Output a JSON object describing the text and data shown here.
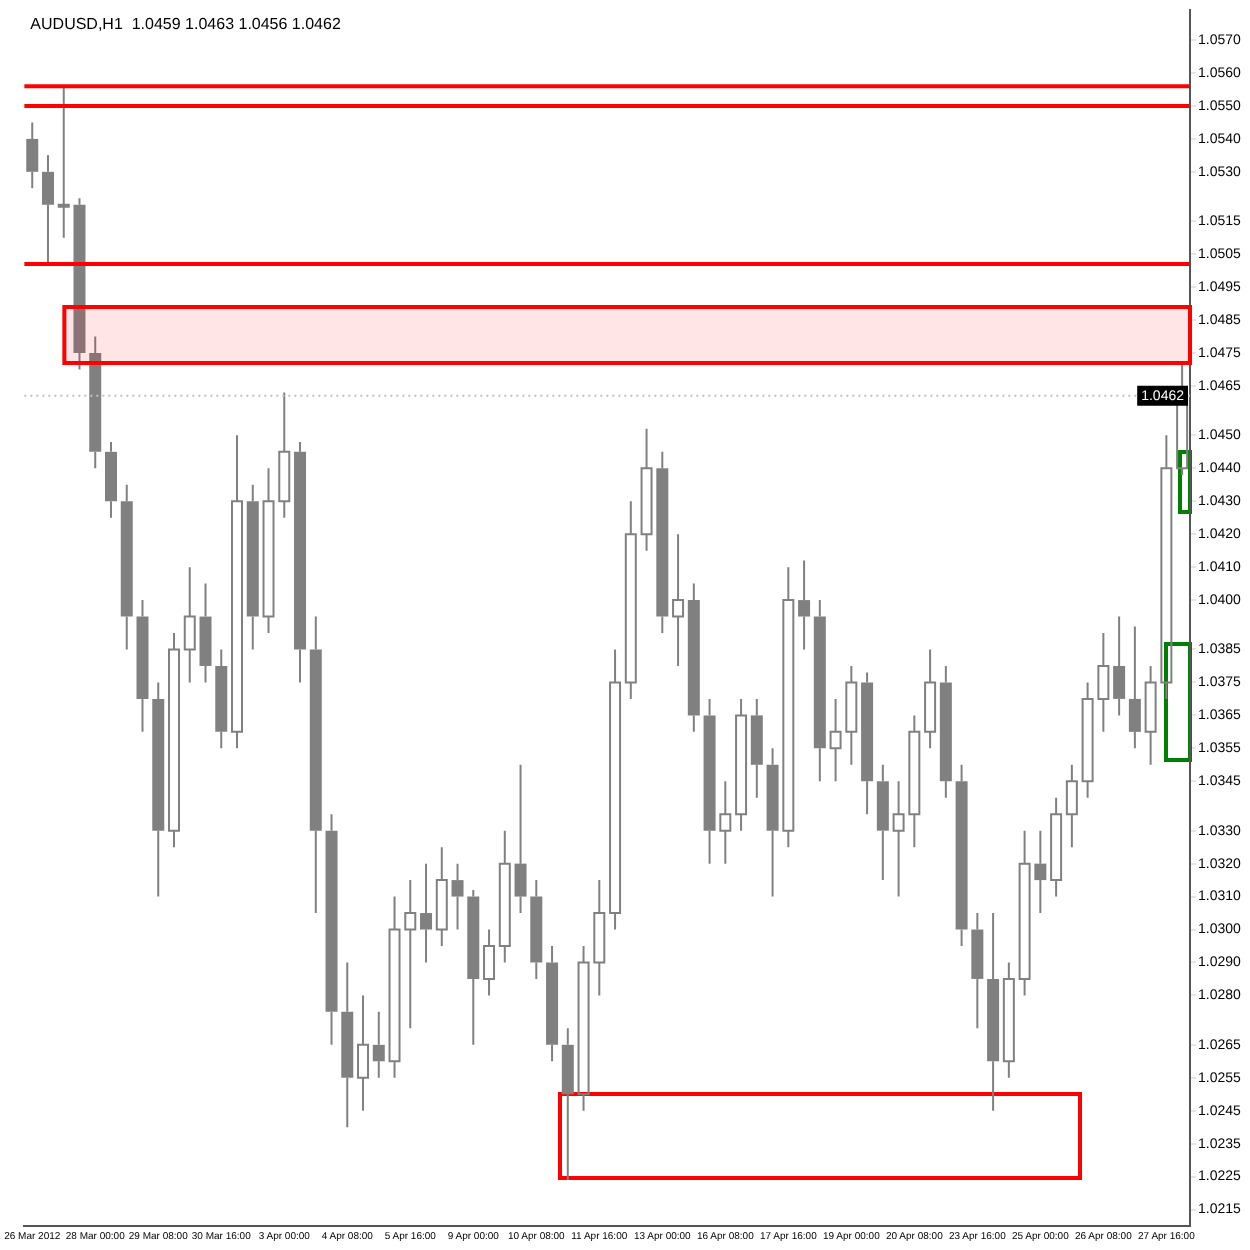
{
  "chart_data": {
    "type": "candlestick",
    "title": "AUDUSD,H1  1.0459 1.0463 1.0456 1.0462",
    "categories": [
      "26 Mar 2012",
      null,
      null,
      null,
      "28 Mar 00:00",
      null,
      null,
      null,
      "29 Mar 08:00",
      null,
      null,
      null,
      "30 Mar 16:00",
      null,
      null,
      null,
      "3 Apr 00:00",
      null,
      null,
      null,
      "4 Apr 08:00",
      null,
      null,
      null,
      "5 Apr 16:00",
      null,
      null,
      null,
      "9 Apr 00:00",
      null,
      null,
      null,
      "10 Apr 08:00",
      null,
      null,
      null,
      "11 Apr 16:00",
      null,
      null,
      null,
      "13 Apr 00:00",
      null,
      null,
      null,
      "16 Apr 08:00",
      null,
      null,
      null,
      "17 Apr 16:00",
      null,
      null,
      null,
      "19 Apr 00:00",
      null,
      null,
      null,
      "20 Apr 08:00",
      null,
      null,
      null,
      "23 Apr 16:00",
      null,
      null,
      null,
      "25 Apr 00:00",
      null,
      null,
      null,
      "26 Apr 08:00",
      null,
      null,
      null,
      "27 Apr 16:00",
      null
    ],
    "color": "#808080",
    "ohlc": [
      [
        1.054,
        1.0545,
        1.0525,
        1.053
      ],
      [
        1.053,
        1.0535,
        1.0502,
        1.052
      ],
      [
        1.052,
        1.0556,
        1.051,
        1.052
      ],
      [
        1.052,
        1.0522,
        1.047,
        1.0475
      ],
      [
        1.0475,
        1.048,
        1.044,
        1.0445
      ],
      [
        1.0445,
        1.0448,
        1.0425,
        1.043
      ],
      [
        1.043,
        1.0435,
        1.0385,
        1.0395
      ],
      [
        1.0395,
        1.04,
        1.036,
        1.037
      ],
      [
        1.037,
        1.0375,
        1.031,
        1.033
      ],
      [
        1.033,
        1.039,
        1.0325,
        1.0385
      ],
      [
        1.0385,
        1.041,
        1.0375,
        1.0395
      ],
      [
        1.0395,
        1.0405,
        1.0375,
        1.038
      ],
      [
        1.038,
        1.0385,
        1.0355,
        1.036
      ],
      [
        1.036,
        1.045,
        1.0355,
        1.043
      ],
      [
        1.043,
        1.0435,
        1.0385,
        1.0395
      ],
      [
        1.0395,
        1.044,
        1.039,
        1.043
      ],
      [
        1.043,
        1.0463,
        1.0425,
        1.0445
      ],
      [
        1.0445,
        1.0448,
        1.0375,
        1.0385
      ],
      [
        1.0385,
        1.0395,
        1.0305,
        1.033
      ],
      [
        1.033,
        1.0335,
        1.0265,
        1.0275
      ],
      [
        1.0275,
        1.029,
        1.024,
        1.0255
      ],
      [
        1.0255,
        1.028,
        1.0245,
        1.0265
      ],
      [
        1.0265,
        1.0275,
        1.0255,
        1.026
      ],
      [
        1.026,
        1.031,
        1.0255,
        1.03
      ],
      [
        1.03,
        1.0315,
        1.027,
        1.0305
      ],
      [
        1.0305,
        1.032,
        1.029,
        1.03
      ],
      [
        1.03,
        1.0325,
        1.0295,
        1.0315
      ],
      [
        1.0315,
        1.032,
        1.03,
        1.031
      ],
      [
        1.031,
        1.0312,
        1.0265,
        1.0285
      ],
      [
        1.0285,
        1.03,
        1.028,
        1.0295
      ],
      [
        1.0295,
        1.033,
        1.029,
        1.032
      ],
      [
        1.032,
        1.035,
        1.0305,
        1.031
      ],
      [
        1.031,
        1.0315,
        1.0285,
        1.029
      ],
      [
        1.029,
        1.0295,
        1.026,
        1.0265
      ],
      [
        1.0265,
        1.027,
        1.0224,
        1.025
      ],
      [
        1.025,
        1.0295,
        1.0245,
        1.029
      ],
      [
        1.029,
        1.0315,
        1.028,
        1.0305
      ],
      [
        1.0305,
        1.0385,
        1.03,
        1.0375
      ],
      [
        1.0375,
        1.043,
        1.037,
        1.042
      ],
      [
        1.042,
        1.0452,
        1.0415,
        1.044
      ],
      [
        1.044,
        1.0445,
        1.039,
        1.0395
      ],
      [
        1.0395,
        1.042,
        1.038,
        1.04
      ],
      [
        1.04,
        1.0405,
        1.036,
        1.0365
      ],
      [
        1.0365,
        1.037,
        1.032,
        1.033
      ],
      [
        1.033,
        1.0345,
        1.032,
        1.0335
      ],
      [
        1.0335,
        1.037,
        1.033,
        1.0365
      ],
      [
        1.0365,
        1.037,
        1.034,
        1.035
      ],
      [
        1.035,
        1.0355,
        1.031,
        1.033
      ],
      [
        1.033,
        1.041,
        1.0325,
        1.04
      ],
      [
        1.04,
        1.0412,
        1.0385,
        1.0395
      ],
      [
        1.0395,
        1.04,
        1.0345,
        1.0355
      ],
      [
        1.0355,
        1.037,
        1.0345,
        1.036
      ],
      [
        1.036,
        1.038,
        1.035,
        1.0375
      ],
      [
        1.0375,
        1.0378,
        1.0335,
        1.0345
      ],
      [
        1.0345,
        1.035,
        1.0315,
        1.033
      ],
      [
        1.033,
        1.0345,
        1.031,
        1.0335
      ],
      [
        1.0335,
        1.0365,
        1.0325,
        1.036
      ],
      [
        1.036,
        1.0385,
        1.0355,
        1.0375
      ],
      [
        1.0375,
        1.038,
        1.034,
        1.0345
      ],
      [
        1.0345,
        1.035,
        1.0295,
        1.03
      ],
      [
        1.03,
        1.0305,
        1.027,
        1.0285
      ],
      [
        1.0285,
        1.0305,
        1.0245,
        1.026
      ],
      [
        1.026,
        1.029,
        1.0255,
        1.0285
      ],
      [
        1.0285,
        1.033,
        1.028,
        1.032
      ],
      [
        1.032,
        1.033,
        1.0305,
        1.0315
      ],
      [
        1.0315,
        1.034,
        1.031,
        1.0335
      ],
      [
        1.0335,
        1.035,
        1.0325,
        1.0345
      ],
      [
        1.0345,
        1.0375,
        1.034,
        1.037
      ],
      [
        1.037,
        1.039,
        1.036,
        1.038
      ],
      [
        1.038,
        1.0395,
        1.0365,
        1.037
      ],
      [
        1.037,
        1.0392,
        1.0355,
        1.036
      ],
      [
        1.036,
        1.038,
        1.035,
        1.0375
      ],
      [
        1.0375,
        1.045,
        1.037,
        1.044
      ],
      [
        1.044,
        1.0472,
        1.0438,
        1.0462
      ]
    ],
    "ylim": [
      1.021,
      1.0579
    ],
    "yticks": [
      {
        "value": 1.057,
        "label": "1.0570"
      },
      {
        "value": 1.056,
        "label": "1.0560"
      },
      {
        "value": 1.055,
        "label": "1.0550"
      },
      {
        "value": 1.054,
        "label": "1.0540"
      },
      {
        "value": 1.053,
        "label": "1.0530"
      },
      {
        "value": 1.0515,
        "label": "1.0515"
      },
      {
        "value": 1.0505,
        "label": "1.0505"
      },
      {
        "value": 1.0495,
        "label": "1.0495"
      },
      {
        "value": 1.0485,
        "label": "1.0485"
      },
      {
        "value": 1.0475,
        "label": "1.0475"
      },
      {
        "value": 1.0465,
        "label": "1.0465"
      },
      {
        "value": 1.045,
        "label": "1.0450"
      },
      {
        "value": 1.044,
        "label": "1.0440"
      },
      {
        "value": 1.043,
        "label": "1.0430"
      },
      {
        "value": 1.042,
        "label": "1.0420"
      },
      {
        "value": 1.041,
        "label": "1.0410"
      },
      {
        "value": 1.04,
        "label": "1.0400"
      },
      {
        "value": 1.0385,
        "label": "1.0385"
      },
      {
        "value": 1.0375,
        "label": "1.0375"
      },
      {
        "value": 1.0365,
        "label": "1.0365"
      },
      {
        "value": 1.0355,
        "label": "1.0355"
      },
      {
        "value": 1.0345,
        "label": "1.0345"
      },
      {
        "value": 1.033,
        "label": "1.0330"
      },
      {
        "value": 1.032,
        "label": "1.0320"
      },
      {
        "value": 1.031,
        "label": "1.0310"
      },
      {
        "value": 1.03,
        "label": "1.0300"
      },
      {
        "value": 1.029,
        "label": "1.0290"
      },
      {
        "value": 1.028,
        "label": "1.0280"
      },
      {
        "value": 1.0265,
        "label": "1.0265"
      },
      {
        "value": 1.0255,
        "label": "1.0255"
      },
      {
        "value": 1.0245,
        "label": "1.0245"
      },
      {
        "value": 1.0235,
        "label": "1.0235"
      },
      {
        "value": 1.0225,
        "label": "1.0225"
      },
      {
        "value": 1.0215,
        "label": "1.0215"
      }
    ],
    "ref_lines": [
      {
        "axis": "y",
        "value": 1.0556,
        "color": "#ff0000"
      },
      {
        "axis": "y",
        "value": 1.055,
        "color": "#ff0000"
      },
      {
        "axis": "y",
        "value": 1.0502,
        "color": "#ff0000"
      },
      {
        "axis": "y",
        "value": 1.0462,
        "label": "1.0462",
        "color": "#c0c0c0",
        "line_style": "dotted"
      }
    ],
    "bands": [
      {
        "axis": "y",
        "from": 1.0472,
        "to": 1.0489,
        "color": "#ff0000"
      }
    ],
    "grid": false,
    "legend": false
  }
}
